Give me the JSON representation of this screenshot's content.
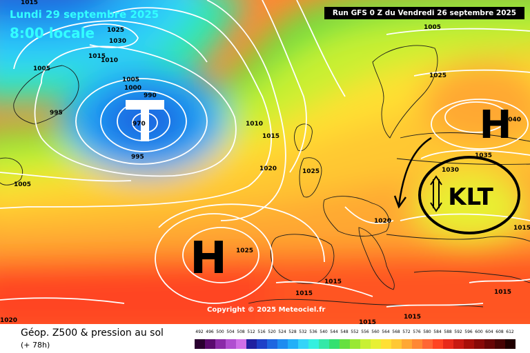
{
  "header": {
    "date": "Lundi 29 septembre 2025",
    "time": "8:00 locale",
    "run": "Run GFS 0 Z du Vendredi 26 septembre 2025"
  },
  "footer": {
    "title": "Géop. Z500 & pression au sol",
    "lead": "(+ 78h)",
    "copyright": "Copyright © 2025 Meteociel.fr"
  },
  "legend": {
    "labels": [
      "492",
      "496",
      "500",
      "504",
      "508",
      "512",
      "516",
      "520",
      "524",
      "528",
      "532",
      "536",
      "540",
      "544",
      "548",
      "552",
      "556",
      "560",
      "564",
      "568",
      "572",
      "576",
      "580",
      "584",
      "588",
      "592",
      "596",
      "600",
      "604",
      "608",
      "612"
    ],
    "colors": [
      "#2a0030",
      "#5a0a6e",
      "#8a2aa8",
      "#b04ed0",
      "#d070e8",
      "#2020a0",
      "#1e40c8",
      "#1e66e0",
      "#1e8cf0",
      "#22b0f8",
      "#33d4f8",
      "#33f0e0",
      "#33e8a8",
      "#33e070",
      "#66e040",
      "#99e833",
      "#c8f033",
      "#e8f033",
      "#ffe033",
      "#ffc833",
      "#ffa833",
      "#ff8833",
      "#ff6633",
      "#ff4422",
      "#e82a1a",
      "#c81a12",
      "#a8100a",
      "#880a08",
      "#680606",
      "#480404",
      "#200000"
    ]
  },
  "map": {
    "annotations": {
      "high_north": "H",
      "high_south": "H",
      "klt": "KLT"
    },
    "isobar_labels": [
      {
        "text": "1015"
      },
      {
        "text": "1025"
      },
      {
        "text": "1030"
      },
      {
        "text": "1005"
      },
      {
        "text": "1015"
      },
      {
        "text": "1010"
      },
      {
        "text": "1005"
      },
      {
        "text": "1005"
      },
      {
        "text": "1000"
      },
      {
        "text": "990"
      },
      {
        "text": "995"
      },
      {
        "text": "970"
      },
      {
        "text": "995"
      },
      {
        "text": "1010"
      },
      {
        "text": "1015"
      },
      {
        "text": "1020"
      },
      {
        "text": "1025"
      },
      {
        "text": "1005"
      },
      {
        "text": "1025"
      },
      {
        "text": "1040"
      },
      {
        "text": "1035"
      },
      {
        "text": "1030"
      },
      {
        "text": "1020"
      },
      {
        "text": "1025"
      },
      {
        "text": "1015"
      },
      {
        "text": "1015"
      },
      {
        "text": "1015"
      },
      {
        "text": "1015"
      },
      {
        "text": "1015"
      },
      {
        "text": "1015"
      },
      {
        "text": "1020"
      }
    ]
  }
}
